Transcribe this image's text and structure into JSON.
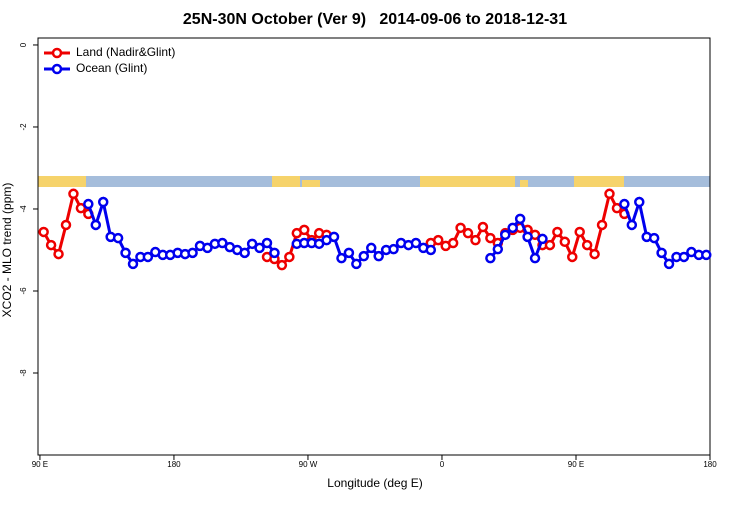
{
  "chart_data": {
    "type": "line",
    "title": "25N-30N October (Ver 9)   2014-09-06 to 2018-12-31",
    "xlabel": "Longitude (deg E)",
    "ylabel": "XCO2 - MLO trend (ppm)",
    "x": [
      92.5,
      97.5,
      102.5,
      107.5,
      112.5,
      117.5,
      122.5,
      127.5,
      132.5,
      137.5,
      142.5,
      147.5,
      152.5,
      157.5,
      162.5,
      167.5,
      172.5,
      177.5,
      182.5,
      187.5,
      192.5,
      197.5,
      202.5,
      207.5,
      212.5,
      217.5,
      222.5,
      227.5,
      232.5,
      237.5,
      242.5,
      247.5,
      252.5,
      257.5,
      262.5,
      267.5,
      272.5,
      277.5,
      282.5,
      287.5,
      292.5,
      297.5,
      302.5,
      307.5,
      312.5,
      317.5,
      322.5,
      327.5,
      332.5,
      337.5,
      342.5,
      347.5,
      352.5,
      357.5,
      362.5,
      367.5,
      372.5,
      377.5,
      382.5,
      387.5,
      392.5,
      397.5,
      402.5,
      407.5,
      412.5,
      417.5,
      422.5,
      427.5,
      432.5,
      437.5,
      442.5,
      447.5,
      452.5,
      457.5,
      462.5,
      467.5,
      472.5,
      477.5,
      482.5,
      487.5,
      492.5,
      497.5,
      502.5,
      507.5,
      512.5,
      517.5,
      522.5,
      527.5,
      532.5,
      537.5
    ],
    "series": [
      {
        "name": "Land (Nadir&Glint)",
        "color": "#ee0000",
        "values": [
          -4.56,
          -4.88,
          -5.1,
          -4.39,
          -3.63,
          -3.98,
          -4.12,
          null,
          null,
          null,
          null,
          null,
          null,
          null,
          null,
          null,
          null,
          null,
          null,
          null,
          null,
          null,
          null,
          null,
          null,
          null,
          null,
          null,
          null,
          null,
          -5.17,
          -5.22,
          -5.37,
          -5.17,
          -4.59,
          -4.51,
          -4.76,
          -4.59,
          -4.63,
          null,
          null,
          null,
          null,
          null,
          null,
          null,
          null,
          null,
          null,
          null,
          null,
          null,
          -4.83,
          -4.76,
          -4.9,
          -4.83,
          -4.46,
          -4.59,
          -4.76,
          -4.44,
          -4.71,
          -4.83,
          -4.59,
          -4.51,
          -4.46,
          -4.51,
          -4.63,
          -4.88,
          -4.88,
          -4.56,
          -4.8,
          -5.17,
          -4.56,
          -4.88,
          -5.1,
          -4.39,
          -3.63,
          -3.98,
          -4.12,
          null,
          null,
          null,
          null,
          null,
          null,
          null,
          null,
          null,
          null,
          null
        ]
      },
      {
        "name": "Ocean (Glint)",
        "color": "#0000ee",
        "values": [
          null,
          null,
          null,
          null,
          null,
          null,
          -3.88,
          -4.39,
          -3.83,
          -4.68,
          -4.71,
          -5.07,
          -5.34,
          -5.17,
          -5.17,
          -5.05,
          -5.12,
          -5.12,
          -5.07,
          -5.1,
          -5.07,
          -4.9,
          -4.95,
          -4.85,
          -4.83,
          -4.93,
          -5.0,
          -5.07,
          -4.85,
          -4.95,
          -4.83,
          -5.07,
          null,
          null,
          -4.85,
          -4.83,
          -4.83,
          -4.85,
          -4.76,
          -4.68,
          -5.2,
          -5.07,
          -5.34,
          -5.15,
          -4.95,
          -5.15,
          -5.0,
          -4.98,
          -4.83,
          -4.88,
          -4.83,
          -4.95,
          -5.0,
          null,
          null,
          null,
          null,
          null,
          null,
          null,
          -5.2,
          -4.98,
          -4.63,
          -4.46,
          -4.24,
          -4.68,
          -5.2,
          -4.73,
          null,
          null,
          null,
          null,
          null,
          null,
          null,
          null,
          null,
          null,
          -3.88,
          -4.39,
          -3.83,
          -4.68,
          -4.71,
          -5.07,
          -5.34,
          -5.17,
          -5.17,
          -5.05,
          -5.12,
          -5.12
        ]
      }
    ],
    "xlim": [
      88.7,
      540
    ],
    "ylim": [
      -10,
      0.17
    ],
    "xticks": [
      {
        "value": 90,
        "label": "90 E"
      },
      180,
      {
        "value": 270,
        "label": "90 W"
      },
      {
        "value": 360,
        "label": "0"
      },
      {
        "value": 450,
        "label": "90 E"
      },
      {
        "value": 540,
        "label": "180"
      }
    ],
    "yticks": [
      0,
      -2,
      -4,
      -6,
      -8
    ],
    "legend": "top-left"
  }
}
